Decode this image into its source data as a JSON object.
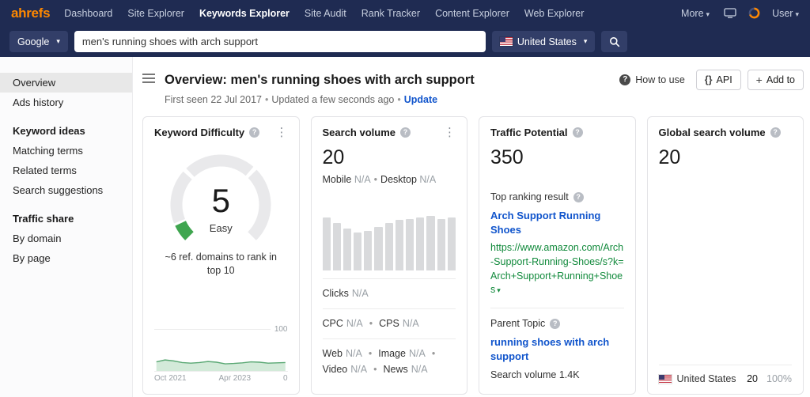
{
  "navbar": {
    "logo": "ahrefs",
    "items": [
      "Dashboard",
      "Site Explorer",
      "Keywords Explorer",
      "Site Audit",
      "Rank Tracker",
      "Content Explorer",
      "Web Explorer"
    ],
    "more_label": "More",
    "user_label": "User"
  },
  "searchbar": {
    "engine": "Google",
    "query": "men's running shoes with arch support",
    "country": "United States"
  },
  "sidebar": {
    "overview": "Overview",
    "ads_history": "Ads history",
    "keyword_ideas": "Keyword ideas",
    "matching_terms": "Matching terms",
    "related_terms": "Related terms",
    "search_suggestions": "Search suggestions",
    "traffic_share": "Traffic share",
    "by_domain": "By domain",
    "by_page": "By page"
  },
  "header": {
    "title": "Overview: men's running shoes with arch support",
    "first_seen": "First seen 22 Jul 2017",
    "updated": "Updated a few seconds ago",
    "update_link": "Update",
    "how_to_use": "How to use",
    "api_label": "API",
    "add_to_label": "Add to"
  },
  "cards": {
    "kd": {
      "title": "Keyword Difficulty",
      "value": "5",
      "label": "Easy",
      "desc": "~6 ref. domains to rank in top 10",
      "y_max": "100",
      "y_min": "0",
      "x_start": "Oct 2021",
      "x_end": "Apr 2023"
    },
    "volume": {
      "title": "Search volume",
      "value": "20",
      "mobile_label": "Mobile",
      "desktop_label": "Desktop",
      "clicks_label": "Clicks",
      "cpc_label": "CPC",
      "cps_label": "CPS",
      "web_label": "Web",
      "image_label": "Image",
      "video_label": "Video",
      "news_label": "News",
      "na": "N/A"
    },
    "traffic": {
      "title": "Traffic Potential",
      "value": "350",
      "top_ranking_label": "Top ranking result",
      "result_title": "Arch Support Running Shoes",
      "result_url": "https://www.amazon.com/Arch-Support-Running-Shoes/s?k=Arch+Support+Running+Shoes",
      "parent_topic_label": "Parent Topic",
      "parent_topic": "running shoes with arch support",
      "search_volume_label": "Search volume",
      "search_volume_value": "1.4K"
    },
    "global": {
      "title": "Global search volume",
      "value": "20",
      "rows": [
        {
          "country": "United States",
          "volume": "20",
          "percent": "100%"
        }
      ]
    }
  },
  "chart_data": [
    {
      "type": "gauge",
      "title": "Keyword Difficulty",
      "value": 5,
      "max": 100,
      "label": "Easy",
      "color": "#3fa54f"
    },
    {
      "type": "area",
      "title": "Keyword Difficulty trend",
      "xlabels": [
        "Oct 2021",
        "Apr 2023"
      ],
      "ylim": [
        0,
        100
      ],
      "values": [
        28,
        34,
        31,
        26,
        24,
        26,
        29,
        27,
        22,
        23,
        25,
        28,
        27,
        24,
        25,
        26
      ]
    },
    {
      "type": "bar",
      "title": "Search volume trend",
      "values": [
        70,
        62,
        55,
        50,
        52,
        57,
        62,
        66,
        68,
        70,
        72,
        68,
        70
      ]
    }
  ],
  "misc": {
    "bullet": "•",
    "caret": "▾",
    "kebab": "⋮",
    "help": "?",
    "plus": "+",
    "braces": "{}"
  },
  "colors": {
    "accent_orange": "#ff8800",
    "link_blue": "#1155cc",
    "url_green": "#128a3c",
    "kd_green": "#3fa54f",
    "navbar_navy": "#1f2b52"
  }
}
